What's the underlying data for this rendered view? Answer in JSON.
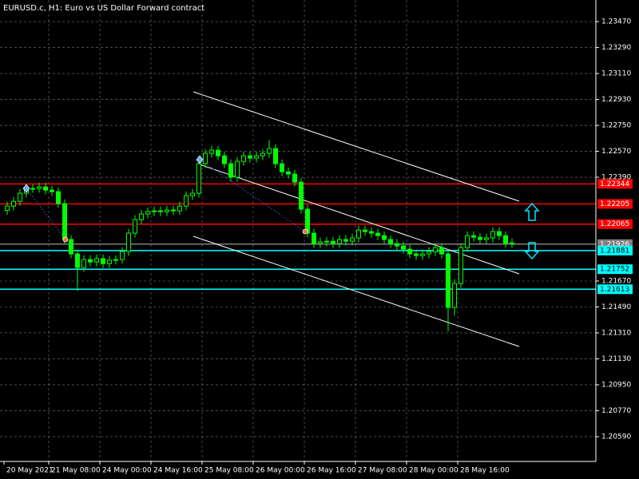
{
  "chart_data": {
    "type": "candlestick",
    "title": "EURUSD.c, H1:  Euro vs US Dollar Forward contract",
    "color": "#00ff00",
    "grid": true,
    "grid_color": "#7a7a7a",
    "ylim": [
      1.20418,
      1.2362
    ],
    "yticks": [
      {
        "value": 1.2347,
        "label": "1.23470"
      },
      {
        "value": 1.2329,
        "label": "1.23290"
      },
      {
        "value": 1.2311,
        "label": "1.23110"
      },
      {
        "value": 1.2293,
        "label": "1.22930"
      },
      {
        "value": 1.2275,
        "label": "1.22750"
      },
      {
        "value": 1.2257,
        "label": "1.22570"
      },
      {
        "value": 1.2239,
        "label": "1.22390"
      },
      {
        "value": 1.2167,
        "label": "1.21670"
      },
      {
        "value": 1.2149,
        "label": "1.21490"
      },
      {
        "value": 1.2131,
        "label": "1.21310"
      },
      {
        "value": 1.2113,
        "label": "1.21130"
      },
      {
        "value": 1.2095,
        "label": "1.20950"
      },
      {
        "value": 1.2077,
        "label": "1.20770"
      },
      {
        "value": 1.2059,
        "label": "1.20590"
      }
    ],
    "levels": [
      {
        "value": 1.22344,
        "color": "#ff0000"
      },
      {
        "value": 1.22205,
        "color": "#ff0000"
      },
      {
        "value": 1.22065,
        "color": "#ff0000"
      },
      {
        "value": 1.21926,
        "color": "#808080"
      },
      {
        "value": 1.21881,
        "color": "#00ffff"
      },
      {
        "value": 1.21752,
        "color": "#00ffff"
      },
      {
        "value": 1.21613,
        "color": "#00ffff"
      }
    ],
    "categories": [
      "20 May 2021",
      null,
      null,
      null,
      null,
      null,
      null,
      "21 May 08:00",
      null,
      null,
      null,
      null,
      null,
      null,
      null,
      "24 May 00:00",
      null,
      null,
      null,
      null,
      null,
      null,
      null,
      "24 May 16:00",
      null,
      null,
      null,
      null,
      null,
      null,
      null,
      "25 May 08:00",
      null,
      null,
      null,
      null,
      null,
      null,
      null,
      "26 May 00:00",
      null,
      null,
      null,
      null,
      null,
      null,
      null,
      "26 May 16:00",
      null,
      null,
      null,
      null,
      null,
      null,
      null,
      "27 May 08:00",
      null,
      null,
      null,
      null,
      null,
      null,
      null,
      "28 May 00:00",
      null,
      null,
      null,
      null,
      null,
      null,
      null,
      "28 May 16:00",
      null,
      null,
      null,
      null,
      null,
      null,
      null,
      null
    ],
    "open": [
      1.2216,
      1.2219,
      1.22223,
      1.22279,
      1.22312,
      1.22312,
      1.22323,
      1.22301,
      1.2229,
      1.22207,
      1.21958,
      1.21858,
      1.21764,
      1.21819,
      1.21802,
      1.21825,
      1.21791,
      1.21814,
      1.21819,
      1.21874,
      1.22002,
      1.22096,
      1.22135,
      1.22151,
      1.22157,
      1.22151,
      1.22163,
      1.22157,
      1.2219,
      1.22262,
      1.22279,
      1.22484,
      1.22556,
      1.22578,
      1.22539,
      1.22484,
      1.2239,
      1.225,
      1.22539,
      1.22523,
      1.22539,
      1.22556,
      1.22589,
      1.22484,
      1.22428,
      1.22412,
      1.22356,
      1.22168,
      1.22002,
      1.2193,
      1.21941,
      1.21946,
      1.2193,
      1.21958,
      1.21946,
      1.21969,
      1.22024,
      1.22013,
      1.22002,
      1.21985,
      1.21958,
      1.2193,
      1.21913,
      1.21891,
      1.21858,
      1.21847,
      1.21858,
      1.21874,
      1.21902,
      1.21858,
      1.21487,
      1.21653,
      1.21902,
      1.21985,
      1.21974,
      1.21958,
      1.21969,
      1.22013,
      1.21985,
      1.2193
    ],
    "high": [
      1.2222,
      1.22253,
      1.22309,
      1.22342,
      1.22342,
      1.22353,
      1.22353,
      1.22331,
      1.2232,
      1.22237,
      1.21988,
      1.21888,
      1.21849,
      1.21849,
      1.21855,
      1.21855,
      1.21844,
      1.21849,
      1.21904,
      1.22032,
      1.22126,
      1.22165,
      1.22181,
      1.22187,
      1.22187,
      1.22193,
      1.22193,
      1.2222,
      1.22292,
      1.22309,
      1.22514,
      1.22586,
      1.22608,
      1.22608,
      1.22569,
      1.22514,
      1.2253,
      1.22569,
      1.22569,
      1.22569,
      1.22586,
      1.2265,
      1.22619,
      1.22514,
      1.22458,
      1.22442,
      1.22386,
      1.22198,
      1.22032,
      1.21971,
      1.21976,
      1.21976,
      1.21988,
      1.21988,
      1.21999,
      1.22054,
      1.22054,
      1.22043,
      1.22032,
      1.22015,
      1.21988,
      1.2196,
      1.21943,
      1.21921,
      1.21888,
      1.21888,
      1.21904,
      1.21932,
      1.21932,
      1.21888,
      1.21683,
      1.21932,
      1.22015,
      1.22015,
      1.22004,
      1.21999,
      1.22043,
      1.22043,
      1.22015,
      1.21965
    ],
    "low": [
      1.2213,
      1.2216,
      1.22193,
      1.22249,
      1.22282,
      1.22282,
      1.22271,
      1.2226,
      1.22177,
      1.21928,
      1.21828,
      1.216,
      1.21734,
      1.21772,
      1.21772,
      1.21761,
      1.21761,
      1.21784,
      1.21789,
      1.21844,
      1.21972,
      1.22066,
      1.22105,
      1.22121,
      1.22121,
      1.22121,
      1.22127,
      1.22127,
      1.2216,
      1.22232,
      1.22249,
      1.22454,
      1.22526,
      1.22509,
      1.22454,
      1.2236,
      1.2236,
      1.2247,
      1.22493,
      1.22493,
      1.22509,
      1.22526,
      1.22454,
      1.22398,
      1.22382,
      1.22326,
      1.22138,
      1.21972,
      1.219,
      1.219,
      1.21911,
      1.219,
      1.219,
      1.21916,
      1.21916,
      1.21939,
      1.21983,
      1.21972,
      1.21955,
      1.21928,
      1.219,
      1.21883,
      1.21861,
      1.21828,
      1.21817,
      1.21817,
      1.21828,
      1.21844,
      1.21828,
      1.2132,
      1.2143,
      1.21623,
      1.21872,
      1.21944,
      1.21928,
      1.21928,
      1.21939,
      1.21955,
      1.219,
      1.219
    ],
    "close": [
      1.2219,
      1.22223,
      1.22279,
      1.22312,
      1.22312,
      1.22323,
      1.22301,
      1.2229,
      1.22207,
      1.21958,
      1.21858,
      1.21764,
      1.21819,
      1.21802,
      1.21825,
      1.21791,
      1.21814,
      1.21819,
      1.21874,
      1.22002,
      1.22096,
      1.22135,
      1.22151,
      1.22157,
      1.22151,
      1.22163,
      1.22157,
      1.2219,
      1.22262,
      1.22279,
      1.22484,
      1.22556,
      1.22578,
      1.22539,
      1.22484,
      1.2239,
      1.225,
      1.22539,
      1.22523,
      1.22539,
      1.22556,
      1.22589,
      1.22484,
      1.22428,
      1.22412,
      1.22356,
      1.22168,
      1.22002,
      1.2193,
      1.21941,
      1.21946,
      1.2193,
      1.21958,
      1.21946,
      1.21969,
      1.22024,
      1.22013,
      1.22002,
      1.21985,
      1.21958,
      1.2193,
      1.21913,
      1.21891,
      1.21858,
      1.21847,
      1.21858,
      1.21874,
      1.21902,
      1.21858,
      1.21487,
      1.21653,
      1.21902,
      1.21985,
      1.21974,
      1.21958,
      1.21969,
      1.22013,
      1.21985,
      1.2193,
      1.21935
    ]
  }
}
